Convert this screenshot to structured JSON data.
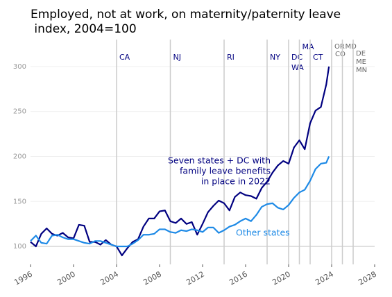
{
  "chart_data": {
    "type": "line",
    "title": [
      "Employed, not at work, on maternity/paternity leave",
      " index, 2004=100"
    ],
    "x": [
      1996.0,
      1996.5,
      1997.0,
      1997.5,
      1998.0,
      1998.5,
      1999.0,
      1999.5,
      2000.0,
      2000.5,
      2001.0,
      2001.5,
      2002.0,
      2002.5,
      2003.0,
      2003.5,
      2004.0,
      2004.5,
      2005.0,
      2005.5,
      2006.0,
      2006.5,
      2007.0,
      2007.5,
      2008.0,
      2008.5,
      2009.0,
      2009.5,
      2010.0,
      2010.5,
      2011.0,
      2011.5,
      2012.0,
      2012.5,
      2013.0,
      2013.5,
      2014.0,
      2014.5,
      2015.0,
      2015.5,
      2016.0,
      2016.5,
      2017.0,
      2017.5,
      2018.0,
      2018.5,
      2019.0,
      2019.5,
      2020.0,
      2020.5,
      2021.0,
      2021.5,
      2022.0,
      2022.5,
      2023.0,
      2023.5,
      2023.75
    ],
    "series": [
      {
        "name": "Seven states + DC with family leave benefits in place in 2022",
        "color": "#000080",
        "values": [
          105,
          100,
          114,
          120,
          114,
          112,
          115,
          110,
          109,
          124,
          123,
          105,
          105,
          102,
          107,
          102,
          100,
          90,
          98,
          105,
          108,
          122,
          131,
          131,
          139,
          140,
          128,
          126,
          131,
          125,
          127,
          113,
          125,
          138,
          145,
          151,
          148,
          140,
          155,
          160,
          157,
          156,
          153,
          165,
          172,
          182,
          190,
          195,
          192,
          210,
          218,
          208,
          237,
          251,
          255,
          280,
          300
        ]
      },
      {
        "name": "Other states",
        "color": "#1e8ae6",
        "values": [
          106,
          112,
          104,
          103,
          112,
          113,
          110,
          108,
          108,
          106,
          104,
          103,
          106,
          106,
          104,
          102,
          100,
          100,
          100,
          103,
          107,
          113,
          113,
          114,
          119,
          119,
          116,
          115,
          118,
          117,
          119,
          118,
          116,
          121,
          121,
          115,
          118,
          122,
          124,
          128,
          131,
          128,
          135,
          144,
          147,
          148,
          143,
          141,
          146,
          154,
          160,
          163,
          173,
          186,
          192,
          193,
          200
        ]
      }
    ],
    "annotations": [
      {
        "lines": [
          "Seven states + DC with",
          "family leave benefits",
          "in place in 2022"
        ],
        "color": "#000080"
      },
      {
        "lines": [
          "Other states"
        ],
        "color": "#1e8ae6"
      }
    ],
    "events": [
      {
        "x": 2004,
        "labels": [
          "CA"
        ],
        "color": "#000080"
      },
      {
        "x": 2009,
        "labels": [
          "NJ"
        ],
        "color": "#000080"
      },
      {
        "x": 2014,
        "labels": [
          "RI"
        ],
        "color": "#000080"
      },
      {
        "x": 2018,
        "labels": [
          "NY"
        ],
        "color": "#000080"
      },
      {
        "x": 2020,
        "labels": [
          "DC",
          "WA"
        ],
        "color": "#000080"
      },
      {
        "x": 2021,
        "labels": [
          "MA"
        ],
        "color": "#000080"
      },
      {
        "x": 2022,
        "labels": [
          "CT"
        ],
        "color": "#000080"
      },
      {
        "x": 2024,
        "labels": [
          "OR",
          "CO"
        ],
        "color": "#666666"
      },
      {
        "x": 2025,
        "labels": [
          "MD"
        ],
        "color": "#666666"
      },
      {
        "x": 2026,
        "labels": [
          "DE",
          "ME",
          "MN"
        ],
        "color": "#666666"
      }
    ],
    "xlim": [
      1996,
      2028
    ],
    "xticks": [
      1996,
      2000,
      2004,
      2008,
      2012,
      2016,
      2020,
      2024,
      2028
    ],
    "ylim": [
      80,
      330
    ],
    "yticks": [
      100,
      150,
      200,
      250,
      300
    ],
    "baseline": 100,
    "grid": true
  }
}
